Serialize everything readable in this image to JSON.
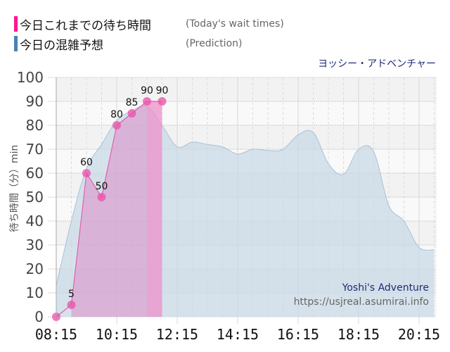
{
  "legend": [
    {
      "label": "今日これまでの待ち時間",
      "sublabel": "(Today's wait times)",
      "color": "#ff1493"
    },
    {
      "label": "今日の混雑予想",
      "sublabel": "(Prediction)",
      "color": "#4682b4"
    }
  ],
  "attraction_name": "ヨッシー・アドベンチャー",
  "watermark": {
    "title": "Yoshi's Adventure",
    "url": "https://usjreal.asumirai.info"
  },
  "colors": {
    "actual_line": "#e060b0",
    "actual_fill": "#e07cc0",
    "actual_marker": "#ec4fa8",
    "prediction_fill": "#c8d8e6",
    "prediction_line": "#a9c1d6",
    "band_dark": "#f2f2f2",
    "band_light": "#f9f9f9"
  },
  "chart_data": {
    "type": "area",
    "title": "ヨッシー・アドベンチャー",
    "xlabel": "",
    "ylabel": "待ち時間（分）min",
    "ylim": [
      0,
      100
    ],
    "yticks": [
      0,
      10,
      20,
      30,
      40,
      50,
      60,
      70,
      80,
      90,
      100
    ],
    "xticks": [
      "08:15",
      "10:15",
      "12:15",
      "14:15",
      "16:15",
      "18:15",
      "20:15"
    ],
    "grid": true,
    "legend_position": "top-left",
    "series": [
      {
        "name": "今日これまでの待ち時間 (Today's wait times)",
        "type": "line+markers",
        "x": [
          "08:15",
          "08:45",
          "09:15",
          "09:45",
          "10:15",
          "10:45",
          "11:15",
          "11:45"
        ],
        "values": [
          0,
          5,
          60,
          50,
          80,
          85,
          90,
          90
        ],
        "data_labels": [
          "",
          "5",
          "60",
          "50",
          "80",
          "85",
          "90",
          "90"
        ]
      },
      {
        "name": "今日の混雑予想 (Prediction)",
        "type": "area",
        "x": [
          "08:15",
          "08:45",
          "09:15",
          "09:45",
          "10:15",
          "10:45",
          "11:15",
          "11:45",
          "12:15",
          "12:45",
          "13:15",
          "13:45",
          "14:15",
          "14:45",
          "15:15",
          "15:45",
          "16:15",
          "16:45",
          "17:15",
          "17:45",
          "18:15",
          "18:45",
          "19:15",
          "19:45",
          "20:15",
          "20:45"
        ],
        "values": [
          13,
          40,
          62,
          72,
          82,
          86,
          88,
          80,
          71,
          73,
          72,
          71,
          68,
          70,
          69.5,
          70,
          76,
          77,
          64,
          59.5,
          70,
          69,
          46.5,
          40,
          29,
          28
        ]
      }
    ]
  }
}
